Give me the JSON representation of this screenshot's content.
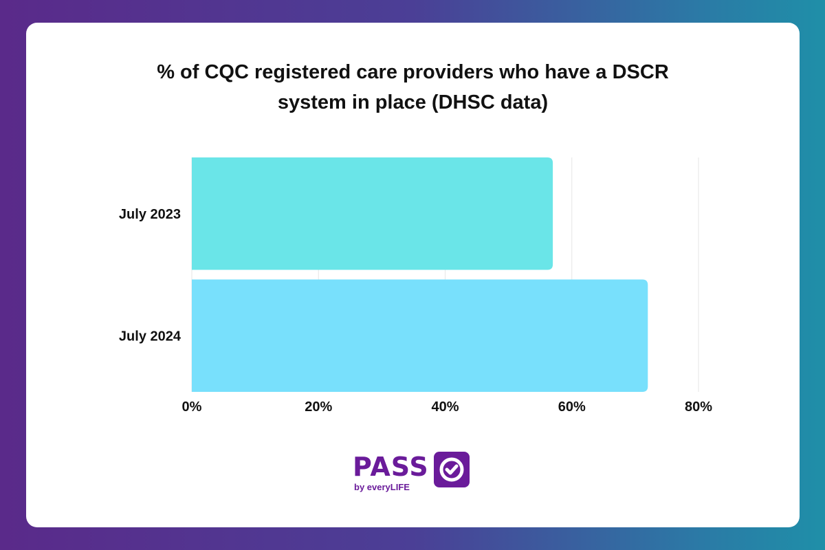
{
  "chart_data": {
    "type": "bar",
    "orientation": "horizontal",
    "title": "% of CQC registered care providers who have a DSCR system in place (DHSC data)",
    "title_lines": [
      "% of CQC registered care providers who have a DSCR",
      "system in place (DHSC data)"
    ],
    "categories": [
      "July 2023",
      "July 2024"
    ],
    "values": [
      57,
      72
    ],
    "colors": [
      "#6ae5e8",
      "#78e0fc"
    ],
    "xlim": [
      0,
      80
    ],
    "xticks": [
      "0%",
      "20%",
      "40%",
      "60%",
      "80%"
    ],
    "grid": true,
    "xlabel": "",
    "ylabel": ""
  },
  "logo": {
    "word": "PASS",
    "sub": "by everyLIFE",
    "icon": "check-icon",
    "color": "#6a1b9a"
  }
}
